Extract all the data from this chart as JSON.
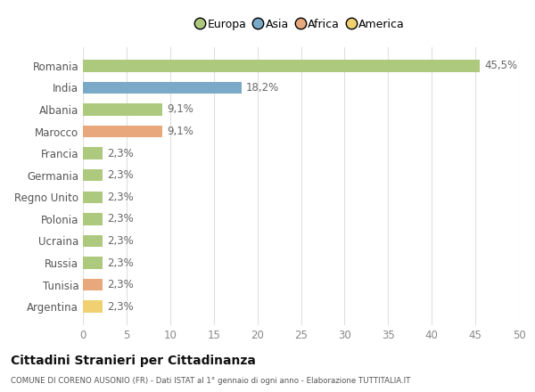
{
  "title": "Cittadini Stranieri per Cittadinanza",
  "subtitle": "COMUNE DI CORENO AUSONIO (FR) - Dati ISTAT al 1° gennaio di ogni anno - Elaborazione TUTTITALIA.IT",
  "categories": [
    "Romania",
    "India",
    "Albania",
    "Marocco",
    "Francia",
    "Germania",
    "Regno Unito",
    "Polonia",
    "Ucraina",
    "Russia",
    "Tunisia",
    "Argentina"
  ],
  "values": [
    45.5,
    18.2,
    9.1,
    9.1,
    2.3,
    2.3,
    2.3,
    2.3,
    2.3,
    2.3,
    2.3,
    2.3
  ],
  "labels": [
    "45,5%",
    "18,2%",
    "9,1%",
    "9,1%",
    "2,3%",
    "2,3%",
    "2,3%",
    "2,3%",
    "2,3%",
    "2,3%",
    "2,3%",
    "2,3%"
  ],
  "colors": [
    "#adc97e",
    "#7aaac8",
    "#adc97e",
    "#e8a87c",
    "#adc97e",
    "#adc97e",
    "#adc97e",
    "#adc97e",
    "#adc97e",
    "#adc97e",
    "#e8a87c",
    "#f0d070"
  ],
  "legend_labels": [
    "Europa",
    "Asia",
    "Africa",
    "America"
  ],
  "legend_colors": [
    "#adc97e",
    "#7aaac8",
    "#e8a87c",
    "#f0d070"
  ],
  "xlim": [
    0,
    50
  ],
  "xticks": [
    0,
    5,
    10,
    15,
    20,
    25,
    30,
    35,
    40,
    45,
    50
  ],
  "background_color": "#ffffff",
  "grid_color": "#e0e0e0",
  "label_fontsize": 8.5,
  "tick_fontsize": 8.5,
  "bar_height": 0.55
}
